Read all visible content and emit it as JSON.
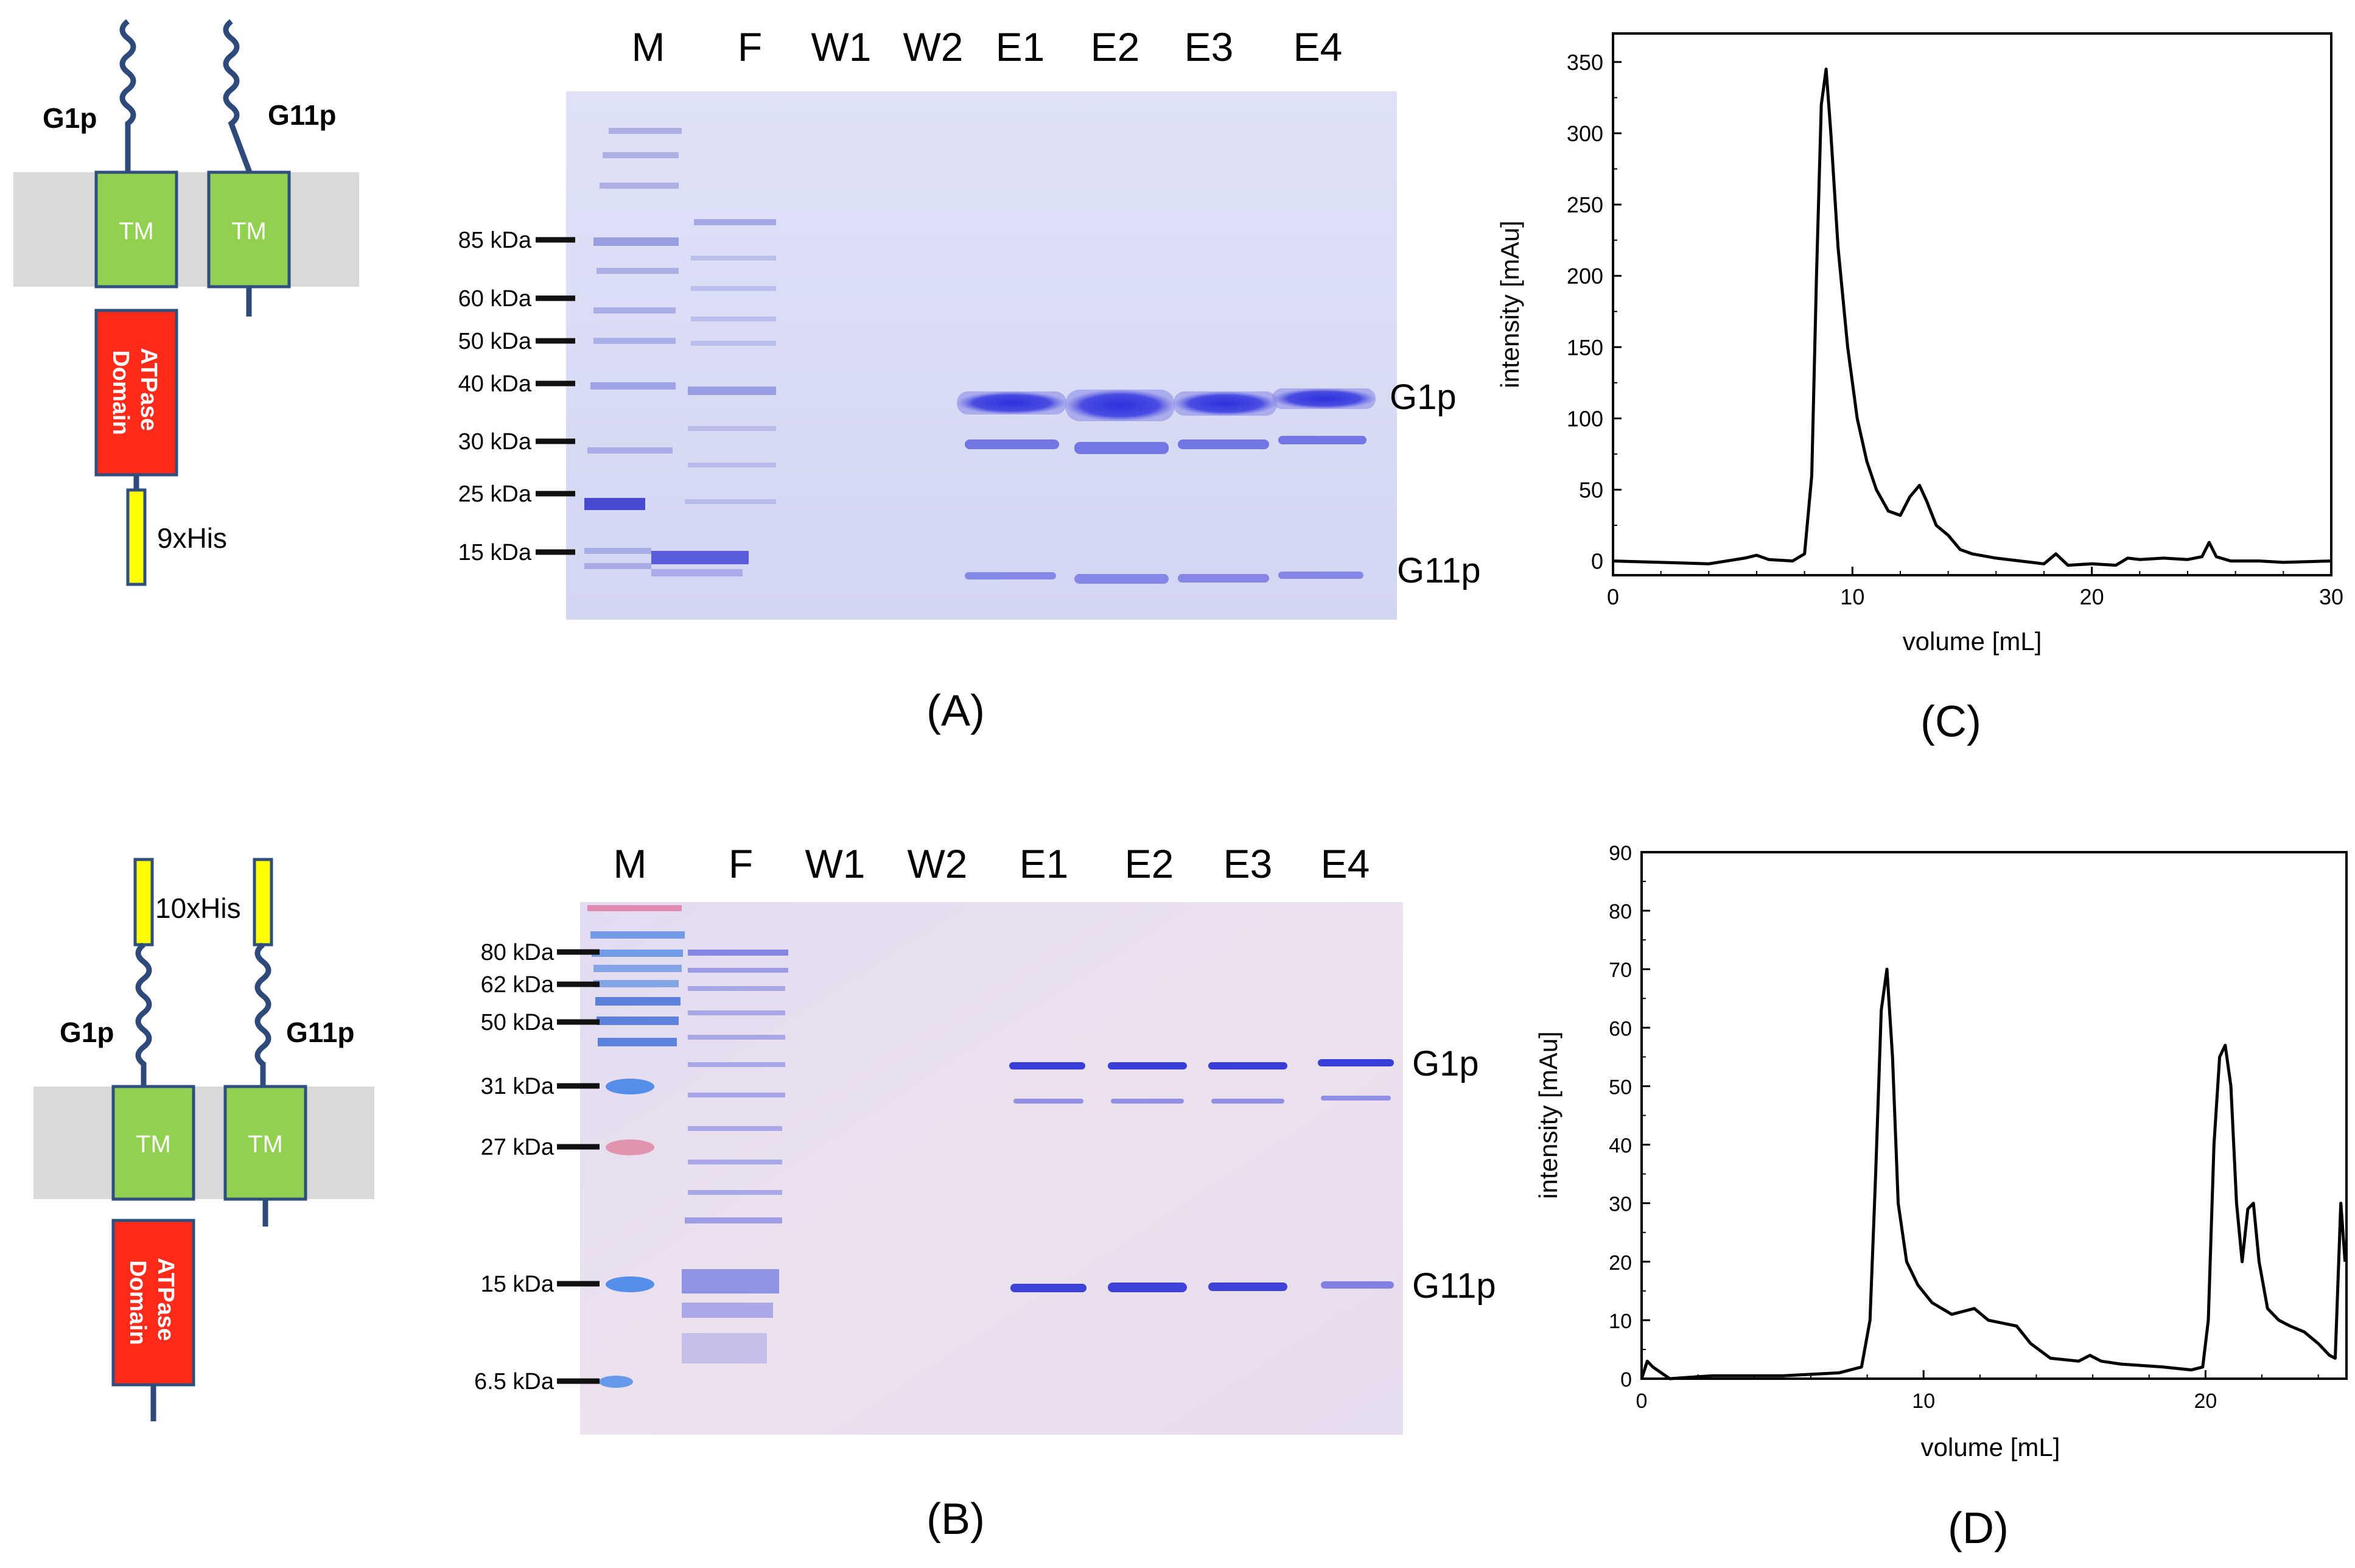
{
  "panels": {
    "A": {
      "caption": "(A)",
      "lane_labels": [
        "M",
        "F",
        "W1",
        "W2",
        "E1",
        "E2",
        "E3",
        "E4"
      ],
      "markers": [
        "85 kDa",
        "60 kDa",
        "50 kDa",
        "40 kDa",
        "30 kDa",
        "25 kDa",
        "15 kDa"
      ],
      "band_labels": {
        "upper": "G1p",
        "lower": "G11p"
      }
    },
    "B": {
      "caption": "(B)",
      "lane_labels": [
        "M",
        "F",
        "W1",
        "W2",
        "E1",
        "E2",
        "E3",
        "E4"
      ],
      "markers": [
        "80 kDa",
        "62 kDa",
        "50 kDa",
        "31 kDa",
        "27 kDa",
        "15 kDa",
        "6.5 kDa"
      ],
      "band_labels": {
        "upper": "G1p",
        "lower": "G11p"
      }
    },
    "C": {
      "caption": "(C)"
    },
    "D": {
      "caption": "(D)"
    }
  },
  "schematics": {
    "top": {
      "g1p": "G1p",
      "g11p": "G11p",
      "tm": "TM",
      "atpase": "ATPase Domain",
      "atpase_lines": [
        "ATPase",
        "Domain"
      ],
      "his": "9xHis"
    },
    "bottom": {
      "g1p": "G1p",
      "g11p": "G11p",
      "tm": "TM",
      "atpase": "ATPase Domain",
      "atpase_lines": [
        "ATPase",
        "Domain"
      ],
      "his": "10xHis"
    }
  },
  "colors": {
    "membrane": "#d9d9d9",
    "tm": "#92d050",
    "tm_border": "#2f4f7f",
    "atpase": "#ff2a1a",
    "his": "#ffff00",
    "linker": "#2e4a7a",
    "gel_bg_a": "#d9dcf4",
    "gel_bg_b": "#e4dcf0",
    "band": "#3c3ee0",
    "band_light": "#8a8ce8",
    "curve": "#000000"
  },
  "chart_data": [
    {
      "id": "C",
      "type": "line",
      "title": "",
      "xlabel": "volume [mL]",
      "ylabel": "intensity [mAu]",
      "xlim": [
        0,
        30
      ],
      "ylim": [
        -10,
        370
      ],
      "xticks": [
        0,
        10,
        20,
        30
      ],
      "yticks": [
        0,
        50,
        100,
        150,
        200,
        250,
        300,
        350
      ],
      "series": [
        {
          "name": "chromatogram",
          "x": [
            0,
            2,
            4,
            5.5,
            6,
            6.5,
            7.5,
            8.0,
            8.3,
            8.5,
            8.7,
            8.9,
            9.1,
            9.4,
            9.8,
            10.2,
            10.6,
            11.0,
            11.5,
            12.0,
            12.4,
            12.8,
            13.1,
            13.5,
            14.0,
            14.5,
            15,
            16,
            17,
            18,
            18.5,
            19,
            20,
            21,
            21.5,
            22,
            23,
            24,
            24.6,
            24.9,
            25.2,
            25.8,
            27,
            28,
            30
          ],
          "y": [
            0,
            -1,
            -2,
            2,
            4,
            1,
            0,
            5,
            60,
            200,
            320,
            345,
            300,
            220,
            150,
            100,
            70,
            50,
            35,
            32,
            45,
            53,
            42,
            25,
            18,
            8,
            5,
            2,
            0,
            -2,
            5,
            -3,
            -2,
            -3,
            2,
            1,
            2,
            1,
            3,
            13,
            3,
            0,
            0,
            -1,
            0
          ]
        }
      ]
    },
    {
      "id": "D",
      "type": "line",
      "title": "",
      "xlabel": "volume [mL]",
      "ylabel": "intensity [mAu]",
      "xlim": [
        0,
        25
      ],
      "ylim": [
        0,
        90
      ],
      "xticks": [
        0,
        10,
        20
      ],
      "yticks": [
        0,
        10,
        20,
        30,
        40,
        50,
        60,
        70,
        80,
        90
      ],
      "series": [
        {
          "name": "chromatogram",
          "x": [
            0,
            0.2,
            0.4,
            0.7,
            1,
            2.5,
            5,
            7,
            7.8,
            8.1,
            8.3,
            8.5,
            8.7,
            8.9,
            9.1,
            9.4,
            9.8,
            10.3,
            11,
            11.8,
            12.3,
            12.8,
            13.3,
            13.8,
            14.5,
            15.5,
            15.9,
            16.3,
            17,
            18.5,
            19.5,
            19.9,
            20.1,
            20.3,
            20.5,
            20.7,
            20.9,
            21.1,
            21.3,
            21.5,
            21.7,
            21.9,
            22.2,
            22.6,
            23,
            23.5,
            24,
            24.4,
            24.6,
            24.8,
            24.95
          ],
          "y": [
            0,
            3,
            2,
            1,
            0,
            0.5,
            0.5,
            1,
            2,
            10,
            35,
            63,
            70,
            55,
            30,
            20,
            16,
            13,
            11,
            12,
            10,
            9.5,
            9,
            6,
            3.5,
            3,
            4,
            3,
            2.5,
            2,
            1.5,
            2,
            10,
            40,
            55,
            57,
            50,
            30,
            20,
            29,
            30,
            20,
            12,
            10,
            9,
            8,
            6,
            4,
            3.5,
            30,
            20
          ]
        }
      ]
    }
  ]
}
